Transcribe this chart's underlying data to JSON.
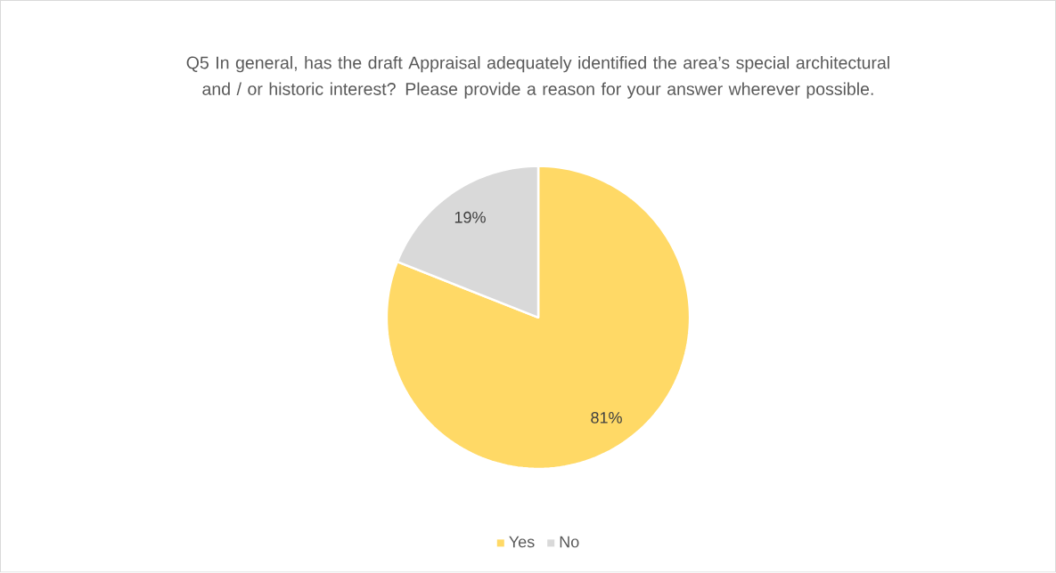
{
  "chart_data": {
    "type": "pie",
    "title": "Q5 In general, has the draft Appraisal adequately identified the area’s special architectural and / or historic interest? Please provide a reason for your answer wherever possible.",
    "categories": [
      "Yes",
      "No"
    ],
    "values": [
      81,
      19
    ],
    "colors": [
      "#ffd966",
      "#d9d9d9"
    ],
    "value_labels": [
      "81%",
      "19%"
    ],
    "legend": "bottom"
  }
}
